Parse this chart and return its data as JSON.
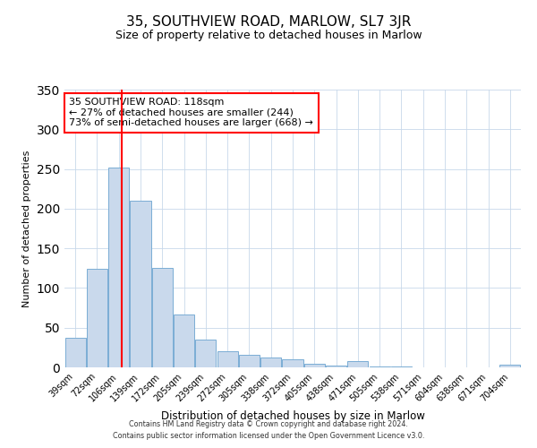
{
  "title": "35, SOUTHVIEW ROAD, MARLOW, SL7 3JR",
  "subtitle": "Size of property relative to detached houses in Marlow",
  "xlabel": "Distribution of detached houses by size in Marlow",
  "ylabel": "Number of detached properties",
  "bin_labels": [
    "39sqm",
    "72sqm",
    "106sqm",
    "139sqm",
    "172sqm",
    "205sqm",
    "239sqm",
    "272sqm",
    "305sqm",
    "338sqm",
    "372sqm",
    "405sqm",
    "438sqm",
    "471sqm",
    "505sqm",
    "538sqm",
    "571sqm",
    "604sqm",
    "638sqm",
    "671sqm",
    "704sqm"
  ],
  "bar_heights": [
    37,
    124,
    252,
    210,
    125,
    67,
    35,
    20,
    16,
    12,
    10,
    5,
    2,
    8,
    1,
    1,
    0,
    0,
    0,
    0,
    3
  ],
  "bar_color": "#c9d9ec",
  "bar_edge_color": "#7aadd4",
  "vline_color": "red",
  "vline_x_index": 2.12,
  "ylim": [
    0,
    350
  ],
  "yticks": [
    0,
    50,
    100,
    150,
    200,
    250,
    300,
    350
  ],
  "annotation_title": "35 SOUTHVIEW ROAD: 118sqm",
  "annotation_line1": "← 27% of detached houses are smaller (244)",
  "annotation_line2": "73% of semi-detached houses are larger (668) →",
  "annotation_box_color": "white",
  "annotation_box_edge": "red",
  "footer1": "Contains HM Land Registry data © Crown copyright and database right 2024.",
  "footer2": "Contains public sector information licensed under the Open Government Licence v3.0."
}
